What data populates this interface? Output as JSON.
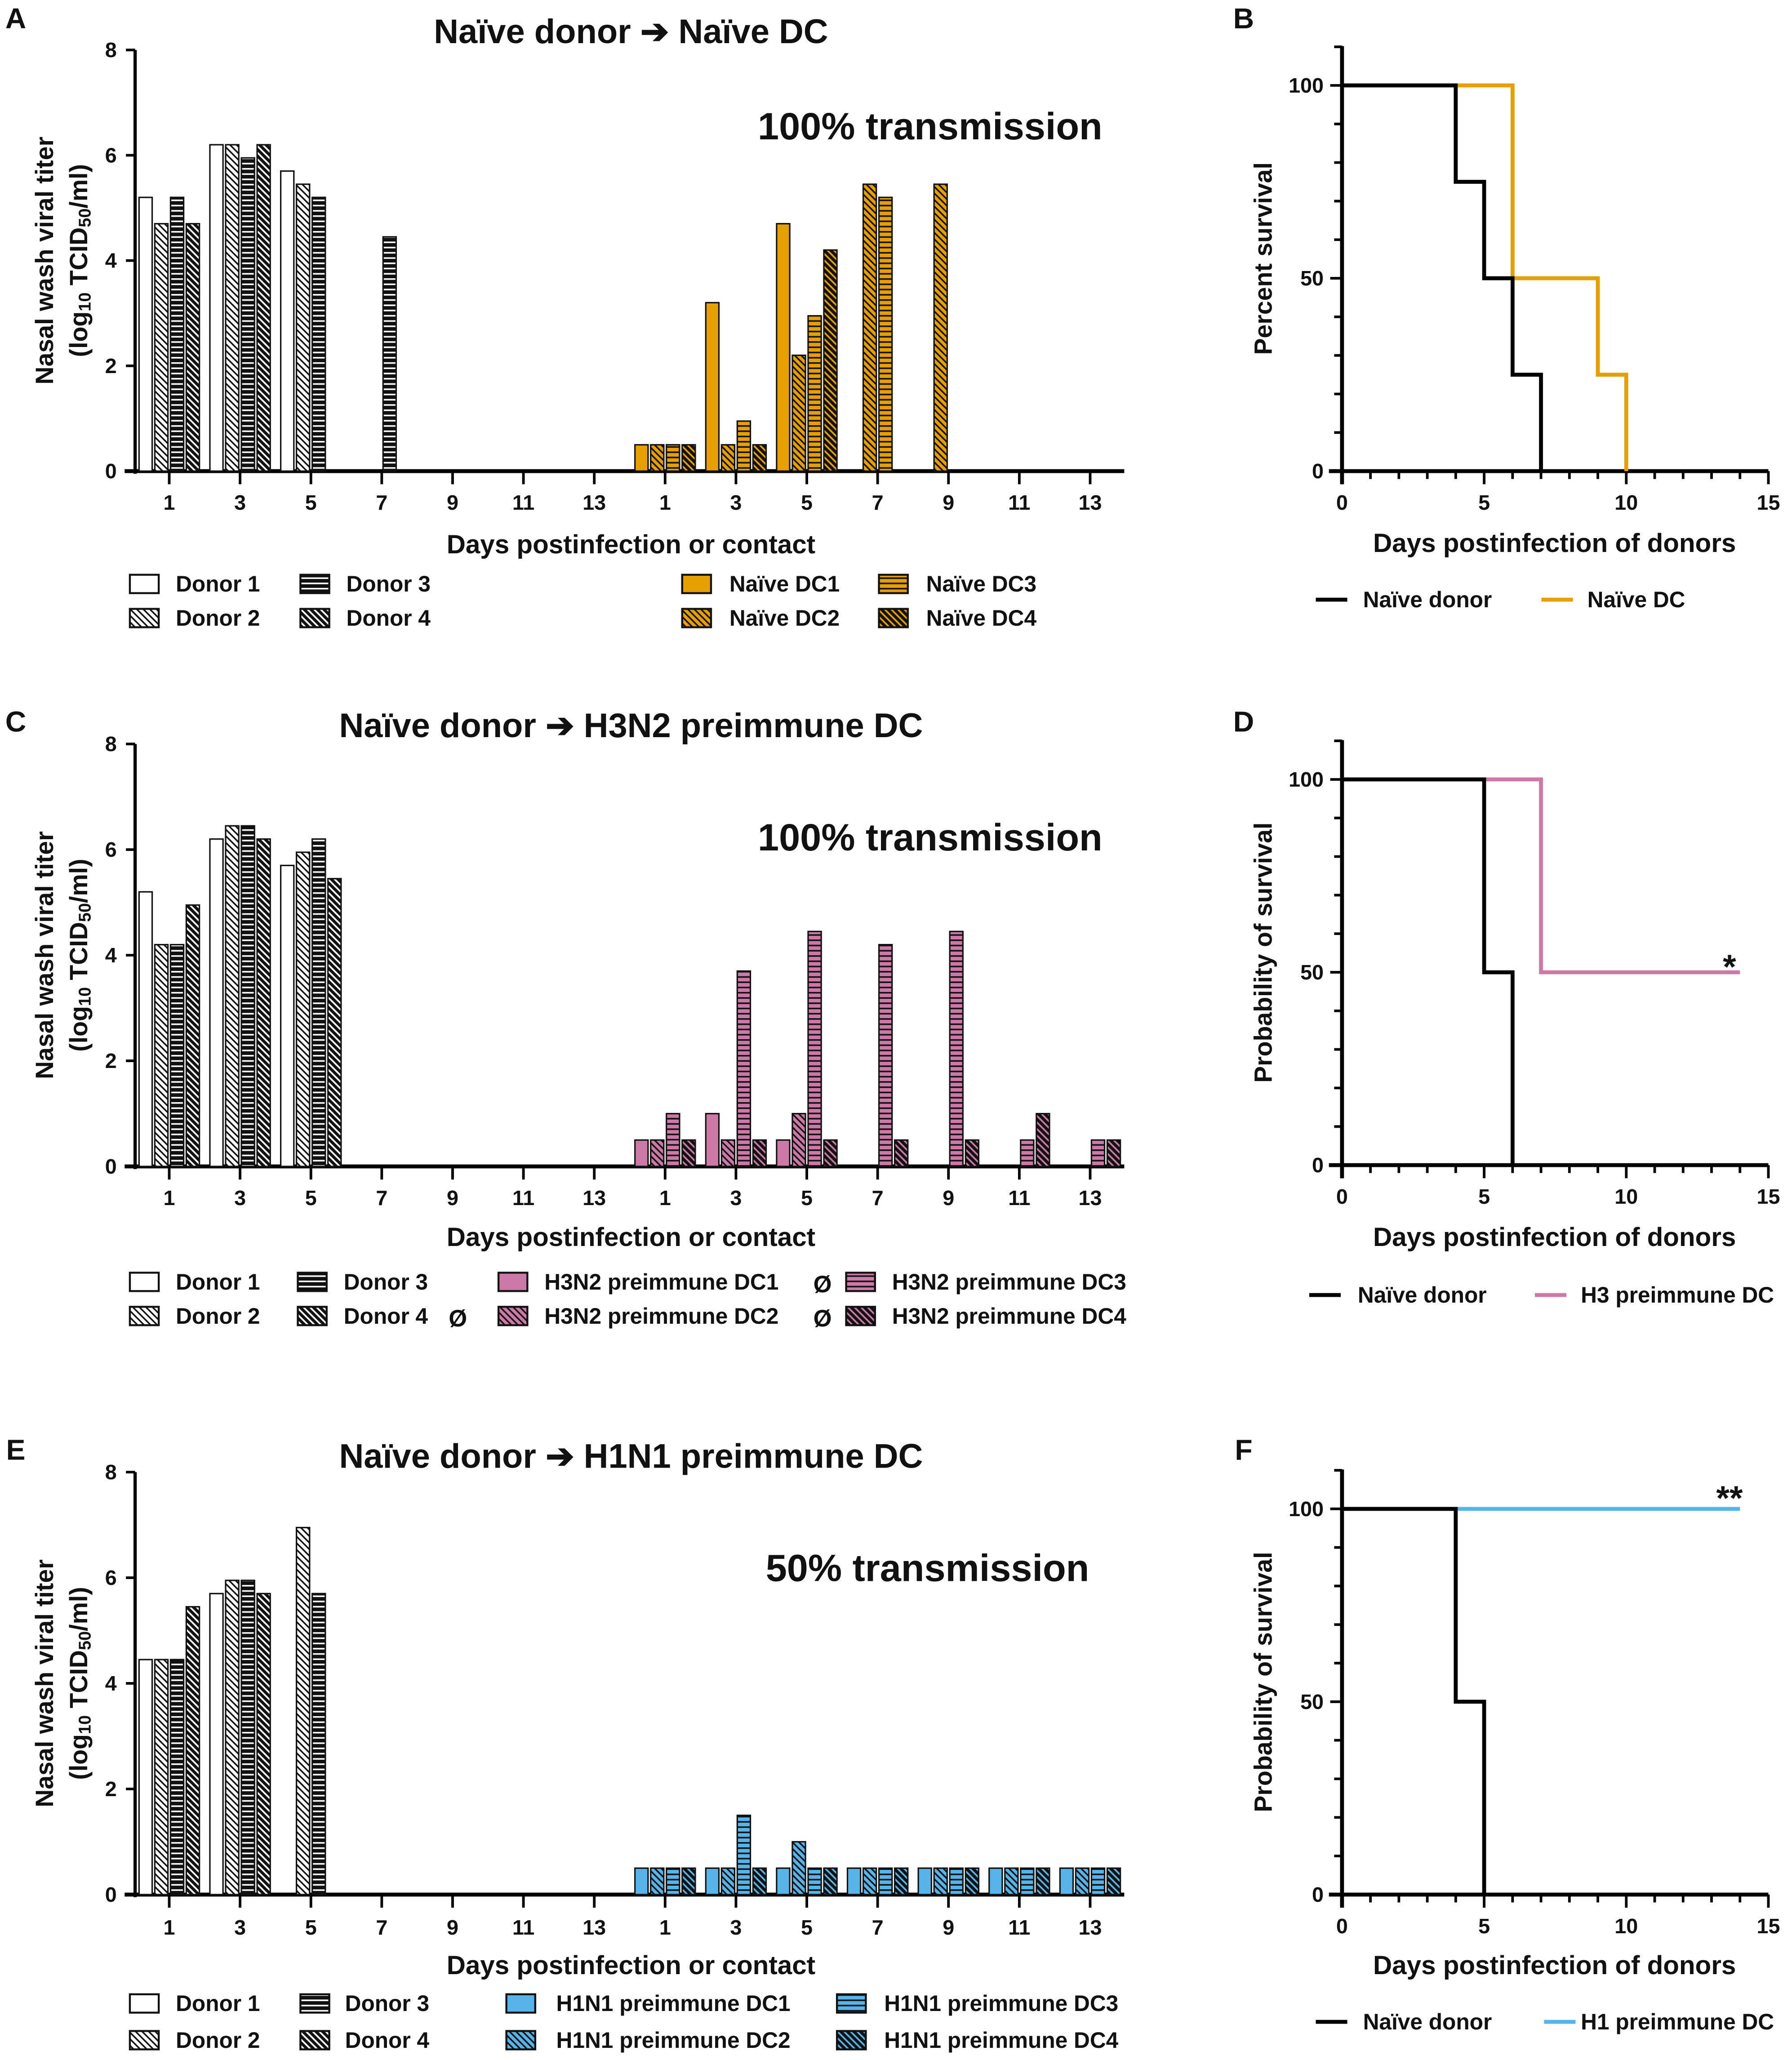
{
  "colors": {
    "naive_dc": "#E69F00",
    "h3n2_dc": "#CC79A7",
    "h1n1_dc": "#56B4E9",
    "donor": "#000000"
  },
  "chart_data": [
    {
      "panel": "A",
      "type": "bar",
      "title": "Naïve donor ➔ Naïve DC",
      "annotation": "100% transmission",
      "ylabel_line1": "Nasal wash viral titer",
      "ylabel_line2_pre": "(log",
      "ylabel_sub1": "10",
      "ylabel_line2_mid": " TCID",
      "ylabel_sub2": "50",
      "ylabel_line2_post": "/ml)",
      "xlabel": "Days postinfection or contact",
      "ylim": [
        0,
        8
      ],
      "yticks": [
        "0",
        "2",
        "4",
        "6",
        "8"
      ],
      "donor_days": [
        "1",
        "3",
        "5",
        "7",
        "9",
        "11",
        "13"
      ],
      "dc_days": [
        "1",
        "3",
        "5",
        "7",
        "9",
        "11",
        "13"
      ],
      "dc_color": "naive_dc",
      "donor_series": [
        {
          "name": "Donor 1",
          "pattern": "open",
          "values": [
            5.2,
            6.2,
            5.7,
            null,
            null,
            null,
            null
          ]
        },
        {
          "name": "Donor 2",
          "pattern": "diag",
          "values": [
            4.7,
            6.2,
            5.45,
            null,
            null,
            null,
            null
          ]
        },
        {
          "name": "Donor 3",
          "pattern": "hstripe",
          "values": [
            5.2,
            5.95,
            5.2,
            4.45,
            null,
            null,
            null
          ]
        },
        {
          "name": "Donor 4",
          "pattern": "diagdark",
          "values": [
            4.7,
            6.2,
            null,
            null,
            null,
            null,
            null
          ]
        }
      ],
      "dc_series": [
        {
          "name": "Naïve DC1",
          "pattern": "solid",
          "values": [
            0.5,
            3.2,
            4.7,
            null,
            null,
            null,
            null
          ]
        },
        {
          "name": "Naïve DC2",
          "pattern": "diag",
          "values": [
            0.5,
            0.5,
            2.2,
            5.45,
            5.45,
            null,
            null
          ]
        },
        {
          "name": "Naïve DC3",
          "pattern": "hstripe",
          "values": [
            0.5,
            0.95,
            2.95,
            5.2,
            null,
            null,
            null
          ]
        },
        {
          "name": "Naïve DC4",
          "pattern": "diagdark",
          "values": [
            0.5,
            0.5,
            4.2,
            null,
            null,
            null,
            null
          ]
        }
      ],
      "legend_marks": {}
    },
    {
      "panel": "C",
      "type": "bar",
      "title": "Naïve donor ➔ H3N2 preimmune DC",
      "annotation": "100% transmission",
      "ylabel_line1": "Nasal wash viral titer",
      "ylabel_line2_pre": "(log",
      "ylabel_sub1": "10",
      "ylabel_line2_mid": " TCID",
      "ylabel_sub2": "50",
      "ylabel_line2_post": "/ml)",
      "xlabel": "Days postinfection or contact",
      "ylim": [
        0,
        8
      ],
      "yticks": [
        "0",
        "2",
        "4",
        "6",
        "8"
      ],
      "donor_days": [
        "1",
        "3",
        "5",
        "7",
        "9",
        "11",
        "13"
      ],
      "dc_days": [
        "1",
        "3",
        "5",
        "7",
        "9",
        "11",
        "13"
      ],
      "dc_color": "h3n2_dc",
      "donor_series": [
        {
          "name": "Donor 1",
          "pattern": "open",
          "values": [
            5.2,
            6.2,
            5.7,
            null,
            null,
            null,
            null
          ]
        },
        {
          "name": "Donor 2",
          "pattern": "diag",
          "values": [
            4.2,
            6.45,
            5.95,
            null,
            null,
            null,
            null
          ]
        },
        {
          "name": "Donor 3",
          "pattern": "hstripe",
          "values": [
            4.2,
            6.45,
            6.2,
            null,
            null,
            null,
            null
          ]
        },
        {
          "name": "Donor 4",
          "pattern": "diagdark",
          "values": [
            4.95,
            6.2,
            5.45,
            null,
            null,
            null,
            null
          ],
          "mark": "Ø"
        }
      ],
      "dc_series": [
        {
          "name": "H3N2 preimmune DC1",
          "pattern": "solid",
          "values": [
            0.5,
            1.0,
            0.5,
            null,
            null,
            null,
            null
          ],
          "mark": "Ø"
        },
        {
          "name": "H3N2 preimmune DC2",
          "pattern": "diag",
          "values": [
            0.5,
            0.5,
            1.0,
            null,
            null,
            null,
            null
          ],
          "mark": "Ø"
        },
        {
          "name": "H3N2 preimmune DC3",
          "pattern": "hstripe",
          "values": [
            1.0,
            3.7,
            4.45,
            4.2,
            4.45,
            0.5,
            0.5
          ]
        },
        {
          "name": "H3N2 preimmune DC4",
          "pattern": "diagdark",
          "values": [
            0.5,
            0.5,
            0.5,
            0.5,
            0.5,
            1.0,
            0.5
          ]
        }
      ]
    },
    {
      "panel": "E",
      "type": "bar",
      "title": "Naïve donor ➔ H1N1 preimmune DC",
      "annotation": "50% transmission",
      "ylabel_line1": "Nasal wash viral titer",
      "ylabel_line2_pre": "(log",
      "ylabel_sub1": "10",
      "ylabel_line2_mid": " TCID",
      "ylabel_sub2": "50",
      "ylabel_line2_post": "/ml)",
      "xlabel": "Days postinfection or contact",
      "ylim": [
        0,
        8
      ],
      "yticks": [
        "0",
        "2",
        "4",
        "6",
        "8"
      ],
      "donor_days": [
        "1",
        "3",
        "5",
        "7",
        "9",
        "11",
        "13"
      ],
      "dc_days": [
        "1",
        "3",
        "5",
        "7",
        "9",
        "11",
        "13"
      ],
      "dc_color": "h1n1_dc",
      "donor_series": [
        {
          "name": "Donor 1",
          "pattern": "open",
          "values": [
            4.45,
            5.7,
            null,
            null,
            null,
            null,
            null
          ]
        },
        {
          "name": "Donor 2",
          "pattern": "diag",
          "values": [
            4.45,
            5.95,
            6.95,
            null,
            null,
            null,
            null
          ]
        },
        {
          "name": "Donor 3",
          "pattern": "hstripe",
          "values": [
            4.45,
            5.95,
            5.7,
            null,
            null,
            null,
            null
          ]
        },
        {
          "name": "Donor 4",
          "pattern": "diagdark",
          "values": [
            5.45,
            5.7,
            null,
            null,
            null,
            null,
            null
          ]
        }
      ],
      "dc_series": [
        {
          "name": "H1N1 preimmune DC1",
          "pattern": "solid",
          "values": [
            0.5,
            0.5,
            0.5,
            0.5,
            0.5,
            0.5,
            0.5
          ]
        },
        {
          "name": "H1N1 preimmune DC2",
          "pattern": "diag",
          "values": [
            0.5,
            0.5,
            1.0,
            0.5,
            0.5,
            0.5,
            0.5
          ]
        },
        {
          "name": "H1N1 preimmune DC3",
          "pattern": "hstripe",
          "values": [
            0.5,
            1.5,
            0.5,
            0.5,
            0.5,
            0.5,
            0.5
          ]
        },
        {
          "name": "H1N1 preimmune DC4",
          "pattern": "diagdark",
          "values": [
            0.5,
            0.5,
            0.5,
            0.5,
            0.5,
            0.5,
            0.5
          ]
        }
      ]
    },
    {
      "panel": "B",
      "type": "line",
      "subtype": "survival-step",
      "ylabel": "Percent survival",
      "xlabel": "Days postinfection of donors",
      "xlim": [
        0,
        15
      ],
      "ylim": [
        0,
        110
      ],
      "xticks": [
        "0",
        "5",
        "10",
        "15"
      ],
      "yticks": [
        "0",
        "50",
        "100"
      ],
      "series": [
        {
          "name": "Naïve donor",
          "color": "donor",
          "points": [
            [
              0,
              100
            ],
            [
              4,
              75
            ],
            [
              5,
              50
            ],
            [
              6,
              25
            ],
            [
              7,
              0
            ]
          ]
        },
        {
          "name": "Naïve DC",
          "color": "naive_dc",
          "points": [
            [
              0,
              100
            ],
            [
              6,
              50
            ],
            [
              9,
              25
            ],
            [
              10,
              0
            ]
          ]
        }
      ],
      "significance": ""
    },
    {
      "panel": "D",
      "type": "line",
      "subtype": "survival-step",
      "ylabel": "Probability of survival",
      "xlabel": "Days postinfection of donors",
      "xlim": [
        0,
        15
      ],
      "ylim": [
        0,
        110
      ],
      "xticks": [
        "0",
        "5",
        "10",
        "15"
      ],
      "yticks": [
        "0",
        "50",
        "100"
      ],
      "series": [
        {
          "name": "Naïve donor",
          "color": "donor",
          "points": [
            [
              0,
              100
            ],
            [
              5,
              50
            ],
            [
              6,
              0
            ]
          ]
        },
        {
          "name": "H3 preimmune DC",
          "color": "h3n2_dc",
          "points": [
            [
              0,
              100
            ],
            [
              7,
              50
            ]
          ],
          "end": 14
        }
      ],
      "significance": "*"
    },
    {
      "panel": "F",
      "type": "line",
      "subtype": "survival-step",
      "ylabel": "Probability of survival",
      "xlabel": "Days postinfection of donors",
      "xlim": [
        0,
        15
      ],
      "ylim": [
        0,
        110
      ],
      "xticks": [
        "0",
        "5",
        "10",
        "15"
      ],
      "yticks": [
        "0",
        "50",
        "100"
      ],
      "series": [
        {
          "name": "Naïve donor",
          "color": "donor",
          "points": [
            [
              0,
              100
            ],
            [
              4,
              50
            ],
            [
              5,
              0
            ]
          ]
        },
        {
          "name": "H1 preimmune DC",
          "color": "h1n1_dc",
          "points": [
            [
              0,
              100
            ]
          ],
          "end": 14
        }
      ],
      "significance": "**"
    }
  ]
}
